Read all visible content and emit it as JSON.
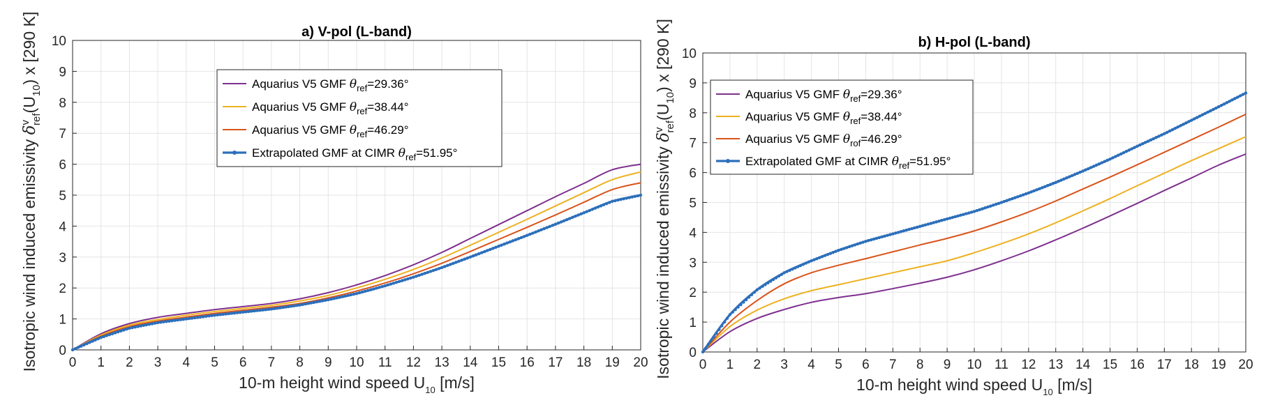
{
  "chart_data": [
    {
      "type": "line",
      "title": "a) V-pol (L-band)",
      "xlabel": {
        "main": "10-m height wind speed U",
        "sub": "10",
        "tail": " [m/s]"
      },
      "ylabel": {
        "pre": "Isotropic wind induced emissivity ",
        "sym": "δ",
        "sup": "v",
        "sub": "ref",
        "mid": "(U",
        "sub2": "10",
        "post": ") x [290 K]"
      },
      "xlim": [
        0,
        20
      ],
      "ylim": [
        0,
        10
      ],
      "xticks": [
        "0",
        "1",
        "2",
        "3",
        "4",
        "5",
        "6",
        "7",
        "8",
        "9",
        "10",
        "11",
        "12",
        "13",
        "14",
        "15",
        "16",
        "17",
        "18",
        "19",
        "20"
      ],
      "yticks": [
        "0",
        "1",
        "2",
        "3",
        "4",
        "5",
        "6",
        "7",
        "8",
        "9",
        "10"
      ],
      "grid": true,
      "legend_position": "upper-middle",
      "x": [
        0,
        1,
        2,
        3,
        4,
        5,
        6,
        7,
        8,
        9,
        10,
        11,
        12,
        13,
        14,
        15,
        16,
        17,
        18,
        19,
        20
      ],
      "series": [
        {
          "name": "Aquarius V5 GMF",
          "theta_sub": "ref",
          "angle": "=29.36°",
          "color": "#7e2f8e",
          "marker": false,
          "values": [
            0,
            0.52,
            0.85,
            1.05,
            1.18,
            1.3,
            1.4,
            1.5,
            1.65,
            1.85,
            2.1,
            2.4,
            2.75,
            3.15,
            3.6,
            4.05,
            4.5,
            4.95,
            5.38,
            5.82,
            6.0
          ]
        },
        {
          "name": "Aquarius V5 GMF",
          "theta_sub": "ref",
          "angle": "=38.44°",
          "color": "#edb120",
          "marker": false,
          "values": [
            0,
            0.48,
            0.8,
            0.98,
            1.12,
            1.24,
            1.34,
            1.44,
            1.58,
            1.76,
            2.0,
            2.28,
            2.6,
            2.97,
            3.38,
            3.8,
            4.22,
            4.65,
            5.08,
            5.5,
            5.75
          ]
        },
        {
          "name": "Aquarius V5 GMF",
          "theta_sub": "ref",
          "angle": "=46.29°",
          "color": "#d95319",
          "marker": false,
          "values": [
            0,
            0.44,
            0.75,
            0.93,
            1.06,
            1.18,
            1.28,
            1.38,
            1.5,
            1.68,
            1.9,
            2.16,
            2.46,
            2.8,
            3.18,
            3.57,
            3.96,
            4.36,
            4.77,
            5.18,
            5.4
          ]
        },
        {
          "name": "Extrapolated GMF at CIMR",
          "theta_sub": "ref",
          "angle": "=51.95°",
          "color": "#2c6fbb",
          "marker": true,
          "values": [
            0,
            0.4,
            0.7,
            0.88,
            1.0,
            1.12,
            1.22,
            1.32,
            1.45,
            1.62,
            1.82,
            2.07,
            2.35,
            2.66,
            3.0,
            3.35,
            3.7,
            4.06,
            4.43,
            4.8,
            5.0
          ]
        }
      ]
    },
    {
      "type": "line",
      "title": "b) H-pol (L-band)",
      "xlabel": {
        "main": "10-m height wind speed U",
        "sub": "10",
        "tail": " [m/s]"
      },
      "ylabel": {
        "pre": "Isotropic wind induced emissivity ",
        "sym": "δ",
        "sup": "v",
        "sub": "ref",
        "mid": "(U",
        "sub2": "10",
        "post": ") x [290 K]"
      },
      "xlim": [
        0,
        20
      ],
      "ylim": [
        0,
        10
      ],
      "xticks": [
        "0",
        "1",
        "2",
        "3",
        "4",
        "5",
        "6",
        "7",
        "8",
        "9",
        "10",
        "11",
        "12",
        "13",
        "14",
        "15",
        "16",
        "17",
        "18",
        "19",
        "20"
      ],
      "yticks": [
        "0",
        "1",
        "2",
        "3",
        "4",
        "5",
        "6",
        "7",
        "8",
        "9",
        "10"
      ],
      "grid": true,
      "legend_position": "top-left",
      "x": [
        0,
        1,
        2,
        3,
        4,
        5,
        6,
        7,
        8,
        9,
        10,
        11,
        12,
        13,
        14,
        15,
        16,
        17,
        18,
        19,
        20
      ],
      "series": [
        {
          "name": "Aquarius V5 GMF",
          "theta_sub": "ref",
          "angle": "=29.36°",
          "color": "#7e2f8e",
          "marker": false,
          "values": [
            0,
            0.68,
            1.12,
            1.42,
            1.66,
            1.82,
            1.95,
            2.12,
            2.3,
            2.5,
            2.75,
            3.05,
            3.38,
            3.75,
            4.14,
            4.55,
            4.97,
            5.4,
            5.82,
            6.25,
            6.62
          ]
        },
        {
          "name": "Aquarius V5 GMF",
          "theta_sub": "ref",
          "angle": "=38.44°",
          "color": "#edb120",
          "marker": false,
          "values": [
            0,
            0.85,
            1.4,
            1.78,
            2.05,
            2.25,
            2.45,
            2.65,
            2.85,
            3.05,
            3.32,
            3.62,
            3.95,
            4.32,
            4.72,
            5.13,
            5.56,
            5.98,
            6.4,
            6.8,
            7.2
          ]
        },
        {
          "name": "Aquarius V5 GMF",
          "theta_sub": "rof",
          "angle": "=46.29°",
          "color": "#d95319",
          "marker": false,
          "values": [
            0,
            1.0,
            1.72,
            2.28,
            2.65,
            2.9,
            3.12,
            3.35,
            3.58,
            3.8,
            4.05,
            4.35,
            4.68,
            5.05,
            5.45,
            5.85,
            6.26,
            6.68,
            7.1,
            7.52,
            7.95
          ]
        },
        {
          "name": "Extrapolated GMF at CIMR",
          "theta_sub": "ref",
          "angle": "=51.95°",
          "color": "#2c6fbb",
          "marker": true,
          "values": [
            0,
            1.25,
            2.08,
            2.65,
            3.05,
            3.4,
            3.7,
            3.95,
            4.2,
            4.45,
            4.7,
            5.0,
            5.32,
            5.67,
            6.05,
            6.45,
            6.88,
            7.3,
            7.75,
            8.2,
            8.66
          ]
        }
      ]
    }
  ]
}
